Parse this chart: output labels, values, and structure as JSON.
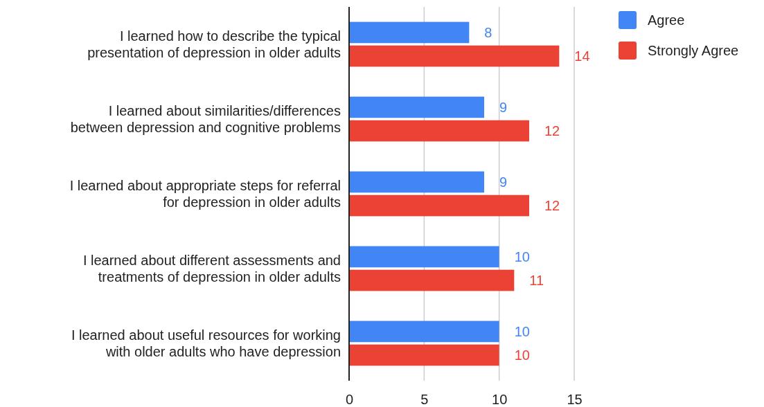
{
  "chart_data": {
    "type": "bar",
    "orientation": "horizontal",
    "categories": [
      "I learned how to describe the typical\npresentation of depression in older adults",
      "I learned about similarities/differences\nbetween depression and cognitive problems",
      "I learned about appropriate steps for referral\nfor depression in older adults",
      "I learned about different assessments and\ntreatments of depression in older adults",
      "I learned about useful resources for working\nwith older adults who have depression"
    ],
    "series": [
      {
        "name": "Agree",
        "color": "#4285f4",
        "values": [
          8,
          9,
          9,
          10,
          10
        ]
      },
      {
        "name": "Strongly Agree",
        "color": "#ea4335",
        "values": [
          14,
          12,
          12,
          11,
          10
        ]
      }
    ],
    "xlim": [
      0,
      15
    ],
    "xticks": [
      0,
      5,
      10,
      15
    ],
    "grid": "x",
    "legend": "top right",
    "data_labels": true
  }
}
